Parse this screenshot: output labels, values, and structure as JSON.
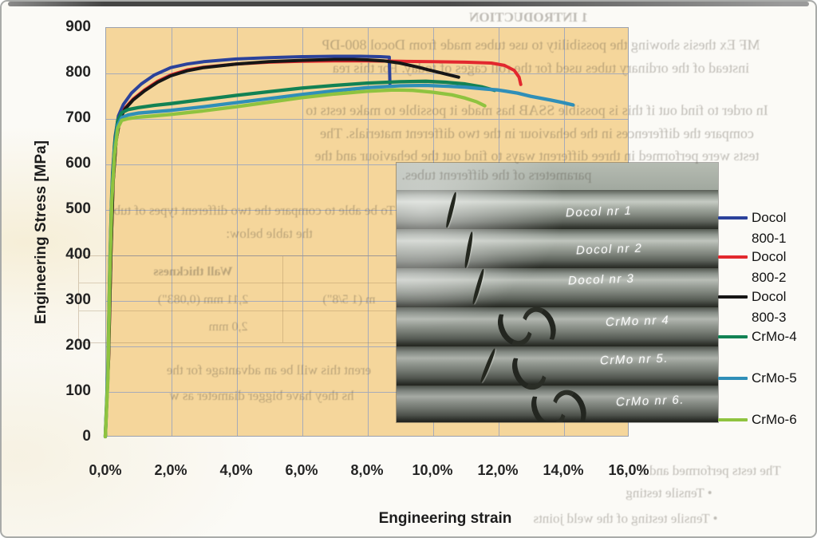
{
  "page": {
    "kind": "scanned report figure with chart, photo inset and show-through text"
  },
  "chart_data": {
    "type": "line",
    "title": "",
    "xlabel": "Engineering strain",
    "ylabel": "Engineering Stress [MPa]",
    "x_ticks": [
      "0,0%",
      "2,0%",
      "4,0%",
      "6,0%",
      "8,0%",
      "10,0%",
      "12,0%",
      "14,0%",
      "16,0%"
    ],
    "y_ticks": [
      "900",
      "800",
      "700",
      "600",
      "500",
      "400",
      "300",
      "200",
      "100",
      "0"
    ],
    "xlim": [
      0,
      16
    ],
    "ylim": [
      0,
      900
    ],
    "grid": true,
    "legend_position": "right-outside",
    "plot_bg": "#F5D69B",
    "series": [
      {
        "name": "Docol 800-1",
        "color": "#2B429B",
        "points": [
          [
            0,
            0
          ],
          [
            0.1,
            180
          ],
          [
            0.16,
            420
          ],
          [
            0.22,
            580
          ],
          [
            0.3,
            660
          ],
          [
            0.4,
            705
          ],
          [
            0.55,
            730
          ],
          [
            0.8,
            755
          ],
          [
            1.1,
            775
          ],
          [
            1.5,
            795
          ],
          [
            2.0,
            811
          ],
          [
            2.5,
            819
          ],
          [
            3.0,
            824
          ],
          [
            4.0,
            830
          ],
          [
            5.0,
            833
          ],
          [
            6.0,
            835
          ],
          [
            7.0,
            836
          ],
          [
            7.8,
            836
          ],
          [
            8.4,
            835
          ],
          [
            8.68,
            834
          ],
          [
            8.7,
            776
          ]
        ]
      },
      {
        "name": "Docol 800-2",
        "color": "#E2282E",
        "points": [
          [
            0,
            0
          ],
          [
            0.1,
            170
          ],
          [
            0.17,
            400
          ],
          [
            0.24,
            560
          ],
          [
            0.33,
            650
          ],
          [
            0.45,
            700
          ],
          [
            0.6,
            722
          ],
          [
            0.85,
            742
          ],
          [
            1.2,
            762
          ],
          [
            1.6,
            781
          ],
          [
            2.0,
            795
          ],
          [
            2.5,
            806
          ],
          [
            3.0,
            812
          ],
          [
            4.0,
            819
          ],
          [
            5.0,
            823
          ],
          [
            6.0,
            825
          ],
          [
            7.0,
            826
          ],
          [
            8.0,
            826
          ],
          [
            9.0,
            825
          ],
          [
            10.0,
            824
          ],
          [
            11.0,
            823
          ],
          [
            11.8,
            821
          ],
          [
            12.2,
            816
          ],
          [
            12.5,
            805
          ],
          [
            12.65,
            790
          ],
          [
            12.7,
            774
          ]
        ]
      },
      {
        "name": "Docol 800-3",
        "color": "#161616",
        "points": [
          [
            0,
            0
          ],
          [
            0.1,
            170
          ],
          [
            0.17,
            400
          ],
          [
            0.24,
            560
          ],
          [
            0.33,
            650
          ],
          [
            0.45,
            698
          ],
          [
            0.6,
            720
          ],
          [
            0.85,
            740
          ],
          [
            1.2,
            760
          ],
          [
            1.6,
            779
          ],
          [
            2.0,
            793
          ],
          [
            2.5,
            804
          ],
          [
            3.0,
            811
          ],
          [
            4.0,
            819
          ],
          [
            5.0,
            824
          ],
          [
            6.0,
            827
          ],
          [
            7.0,
            829
          ],
          [
            7.6,
            829
          ],
          [
            8.0,
            828
          ],
          [
            8.5,
            826
          ],
          [
            9.0,
            821
          ],
          [
            9.5,
            813
          ],
          [
            10.0,
            804
          ],
          [
            10.4,
            797
          ],
          [
            10.8,
            790
          ]
        ]
      },
      {
        "name": "CrMo-4",
        "color": "#128254",
        "points": [
          [
            0,
            0
          ],
          [
            0.08,
            150
          ],
          [
            0.14,
            380
          ],
          [
            0.2,
            540
          ],
          [
            0.28,
            640
          ],
          [
            0.38,
            695
          ],
          [
            0.5,
            712
          ],
          [
            0.7,
            719
          ],
          [
            1.0,
            723
          ],
          [
            1.5,
            728
          ],
          [
            2.0,
            732
          ],
          [
            3.0,
            741
          ],
          [
            4.0,
            750
          ],
          [
            5.0,
            758
          ],
          [
            6.0,
            766
          ],
          [
            7.0,
            772
          ],
          [
            8.0,
            777
          ],
          [
            9.0,
            780
          ],
          [
            9.8,
            781
          ],
          [
            10.4,
            779
          ],
          [
            11.0,
            775
          ],
          [
            11.5,
            769
          ],
          [
            11.9,
            761
          ]
        ]
      },
      {
        "name": "CrMo-5",
        "color": "#2F8FB8",
        "points": [
          [
            0,
            0
          ],
          [
            0.08,
            140
          ],
          [
            0.14,
            370
          ],
          [
            0.2,
            530
          ],
          [
            0.28,
            630
          ],
          [
            0.38,
            685
          ],
          [
            0.5,
            701
          ],
          [
            0.7,
            707
          ],
          [
            1.0,
            711
          ],
          [
            1.5,
            714
          ],
          [
            2.0,
            717
          ],
          [
            3.0,
            725
          ],
          [
            4.0,
            734
          ],
          [
            5.0,
            743
          ],
          [
            6.0,
            752
          ],
          [
            7.0,
            760
          ],
          [
            8.0,
            767
          ],
          [
            9.0,
            771
          ],
          [
            9.8,
            772
          ],
          [
            10.5,
            770
          ],
          [
            11.0,
            768
          ],
          [
            11.6,
            764
          ],
          [
            12.0,
            762
          ],
          [
            12.6,
            755
          ],
          [
            13.0,
            748
          ],
          [
            13.6,
            740
          ],
          [
            14.0,
            734
          ],
          [
            14.3,
            729
          ]
        ]
      },
      {
        "name": "CrMo-6",
        "color": "#8FC33F",
        "points": [
          [
            0,
            0
          ],
          [
            0.08,
            130
          ],
          [
            0.14,
            360
          ],
          [
            0.2,
            520
          ],
          [
            0.28,
            620
          ],
          [
            0.38,
            678
          ],
          [
            0.5,
            695
          ],
          [
            0.7,
            699
          ],
          [
            1.0,
            702
          ],
          [
            1.5,
            705
          ],
          [
            2.0,
            708
          ],
          [
            3.0,
            716
          ],
          [
            4.0,
            725
          ],
          [
            5.0,
            735
          ],
          [
            6.0,
            745
          ],
          [
            7.0,
            753
          ],
          [
            8.0,
            759
          ],
          [
            8.8,
            762
          ],
          [
            9.4,
            761
          ],
          [
            10.0,
            757
          ],
          [
            10.6,
            751
          ],
          [
            11.0,
            744
          ],
          [
            11.35,
            736
          ],
          [
            11.6,
            727
          ]
        ]
      }
    ]
  },
  "legend": {
    "entries": [
      {
        "label": "Docol 800-1",
        "color": "#2B429B"
      },
      {
        "label": "Docol 800-2",
        "color": "#E2282E"
      },
      {
        "label": "Docol 800-3",
        "color": "#161616"
      },
      {
        "label": "CrMo-4",
        "color": "#128254"
      },
      {
        "label": "CrMo-5",
        "color": "#2F8FB8"
      },
      {
        "label": "CrMo-6",
        "color": "#8FC33F"
      }
    ]
  },
  "photo": {
    "description": "six tensile-tested steel tubes stacked, each with a fracture and handwritten label",
    "tube_labels": [
      "Docol  nr 1",
      "Docol  nr 2",
      "Docol  nr 3",
      "CrMo  nr 4",
      "CrMo  nr 5.",
      "CrMo  nr 6."
    ]
  },
  "background_text": {
    "note": "faint mirrored show-through text from reverse side of the scanned page",
    "items": [
      "1   INTRODUCTION",
      "MF Ex thesis showing the possibility to use tubes made from Docol 800-DP",
      "instead of the ordinary tubes used for the roll cages of today. For this rea",
      "In order to find out if this is possible SSAB has made it possible to make tests to",
      "compare the differences in the behaviour in the two different materials. The",
      "tests were performed in three different ways to find out the behaviour and the",
      "parameters of the different tubes.",
      "To be able to compare the two different types of tubes we chose to look at",
      "the table below:",
      "Wall thickness",
      "2,11 mm (0,083\")",
      "2,0 mm",
      "m (1 5/8\")",
      "erent this will be an advantage for the",
      "hs they have bigger diameter as w",
      "The tests performed and d",
      "•   Tensile testing",
      "•   Tensile testing of the weld joints"
    ]
  },
  "colors": {
    "plot_bg": "#F5D69B",
    "grid": "#A7ABB8",
    "axis_text": "#242424",
    "frame": "#A9ABA9",
    "page_bg": "#FBFAF6"
  }
}
